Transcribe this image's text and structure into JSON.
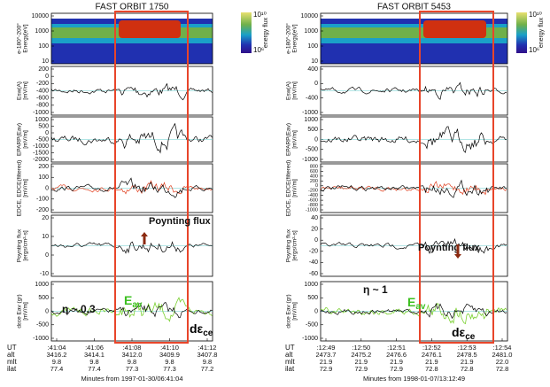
{
  "figures": [
    {
      "title": "FAST ORBIT 1750",
      "colorbar": {
        "top": "10¹⁰",
        "bottom": "10⁶",
        "label": "energy flux"
      },
      "panels": [
        {
          "ylabel": [
            "e-180°-200°",
            "Energy[eV]"
          ],
          "yticks": [
            "10000",
            "1000",
            "100",
            "10"
          ]
        },
        {
          "ylabel": [
            "Esw(A)",
            "[mV/m]"
          ],
          "yticks": [
            "200",
            "0",
            "-200",
            "-400",
            "-600",
            "-800",
            "-1000"
          ]
        },
        {
          "ylabel": [
            "EPARP(Eav)",
            "[mV/m]"
          ],
          "yticks": [
            "1000",
            "500",
            "0",
            "-500",
            "-1000",
            "-1500",
            "-2000"
          ]
        },
        {
          "ylabel": [
            "EDCE, EDCE(filtered)",
            "[mV/m]"
          ],
          "yticks": [
            "200",
            "100",
            "0",
            "-100",
            "-200"
          ]
        },
        {
          "ylabel": [
            "Poynting flux",
            "[ergs/cm²-s]"
          ],
          "yticks": [
            "20",
            "10",
            "0",
            "-10"
          ]
        },
        {
          "ylabel": [
            "dεce Eav (gr)",
            "[mV/m]"
          ],
          "yticks": [
            "1000",
            "500",
            "0",
            "-500",
            "-1000"
          ]
        }
      ],
      "annotations": {
        "poynting": "Poynting flux",
        "eta": "η ~ 0.3",
        "eav": {
          "main": "E",
          "sub": "av"
        },
        "dece": {
          "main": "dε",
          "sub": "ce"
        }
      },
      "footer": {
        "row_labels": [
          "UT",
          "alt",
          "mlt",
          "ilat"
        ],
        "columns": [
          [
            ":41:04",
            "3416.2",
            "9.8",
            "77.4"
          ],
          [
            ":41:06",
            "3414.1",
            "9.8",
            "77.4"
          ],
          [
            ":41:08",
            "3412.0",
            "9.8",
            "77.3"
          ],
          [
            ":41:10",
            "3409.9",
            "9.8",
            "77.3"
          ],
          [
            ":41:12",
            "3407.8",
            "9.8",
            "77.2"
          ]
        ],
        "caption": "Minutes from 1997-01-30/06:41:04"
      }
    },
    {
      "title": "FAST ORBIT 5453",
      "colorbar": {
        "top": "10¹⁰",
        "bottom": "10⁶",
        "label": "energy flux"
      },
      "panels": [
        {
          "ylabel": [
            "e-180°-200°",
            "Energy[eV]"
          ],
          "yticks": [
            "10000",
            "1000",
            "100",
            "10"
          ]
        },
        {
          "ylabel": [
            "Esw(A)",
            "[mV/m]"
          ],
          "yticks": [
            "400",
            "0",
            "-400",
            "-1000"
          ]
        },
        {
          "ylabel": [
            "EPARP(Eav)",
            "[mV/m]"
          ],
          "yticks": [
            "1000",
            "500",
            "0",
            "-500",
            "-1000"
          ]
        },
        {
          "ylabel": [
            "EDCE, EDCE(filtered)",
            "[mV/m]"
          ],
          "yticks": [
            "800",
            "600",
            "400",
            "200",
            "0",
            "-200",
            "-400",
            "-600",
            "-800",
            "-1000"
          ]
        },
        {
          "ylabel": [
            "Poynting flux",
            "[ergs/cm²-s]"
          ],
          "yticks": [
            "40",
            "20",
            "0",
            "-20",
            "-40",
            "-60"
          ]
        },
        {
          "ylabel": [
            "dεce Eav (gr)",
            "[mV/m]"
          ],
          "yticks": [
            "1000",
            "500",
            "0",
            "-500",
            "-1000"
          ]
        }
      ],
      "annotations": {
        "poynting": "Poynting flux",
        "eta": "η ~ 1",
        "eav": {
          "main": "E",
          "sub": "av"
        },
        "dece": {
          "main": "dε",
          "sub": "ce"
        }
      },
      "footer": {
        "row_labels": [
          "UT",
          "alt",
          "mlt",
          "ilat"
        ],
        "columns": [
          [
            ":12:49",
            "2473.7",
            "21.9",
            "72.9"
          ],
          [
            ":12:50",
            "2475.2",
            "21.9",
            "72.9"
          ],
          [
            ":12:51",
            "2476.6",
            "21.9",
            "72.9"
          ],
          [
            ":12:52",
            "2476.1",
            "21.9",
            "72.8"
          ],
          [
            ":12:53",
            "2478.5",
            "21.9",
            "72.8"
          ],
          [
            ":12:54",
            "2481.0",
            "22.0",
            "72.8"
          ]
        ],
        "caption": "Minutes from 1998-01-07/13:12:49"
      }
    }
  ]
}
